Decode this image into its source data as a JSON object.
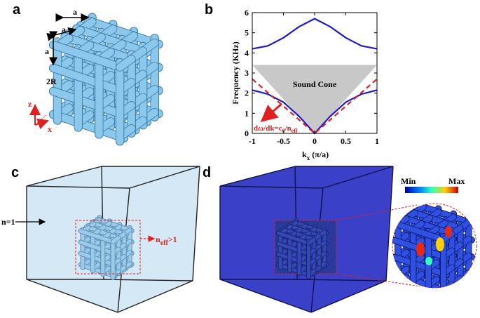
{
  "panels": {
    "a": {
      "label": "a",
      "annotations": [
        "a",
        "a",
        "a",
        "2R"
      ],
      "axes": [
        "z",
        "x"
      ]
    },
    "c": {
      "label": "c",
      "medium": "n=1",
      "inclusion": {
        "main": "n",
        "sub": "eff",
        "rest": ">1"
      }
    },
    "d": {
      "label": "d",
      "colorbar": {
        "min": "Min",
        "max": "Max"
      }
    }
  },
  "chart_data": {
    "type": "line",
    "panel_label": "b",
    "xlabel": {
      "main": "k",
      "sub": "x",
      "rest": " (π/a)"
    },
    "ylabel": "Frequency (KHz)",
    "x": [
      -1,
      -0.75,
      -0.5,
      -0.25,
      0,
      0.25,
      0.5,
      0.75,
      1
    ],
    "series": [
      {
        "color": "#1a1acc",
        "dash": false,
        "values": [
          4.2,
          4.35,
          4.75,
          5.3,
          5.7,
          5.3,
          4.75,
          4.35,
          4.2
        ]
      },
      {
        "color": "#1a1acc",
        "dash": false,
        "values": [
          2.15,
          1.95,
          1.55,
          0.85,
          0,
          0.85,
          1.55,
          1.95,
          2.15
        ]
      },
      {
        "color": "#e02020",
        "dash": true,
        "values": [
          2.7,
          2.025,
          1.35,
          0.675,
          0,
          0.675,
          1.35,
          2.025,
          2.7
        ]
      }
    ],
    "sound_cone": {
      "label": "Sound Cone",
      "color": "#c8c8c8",
      "x": [
        -1,
        0,
        1
      ],
      "values": [
        3.4,
        0,
        3.4
      ]
    },
    "annotation": {
      "parts": [
        "dω/dk=c",
        "0",
        "/n",
        "eff"
      ],
      "color": "#e02020"
    },
    "xlim": [
      -1,
      1
    ],
    "ylim": [
      0,
      6
    ],
    "xticks": [
      -1,
      -0.5,
      0,
      0.5,
      1
    ],
    "yticks": [
      0,
      1,
      2,
      3,
      4,
      5,
      6
    ]
  }
}
